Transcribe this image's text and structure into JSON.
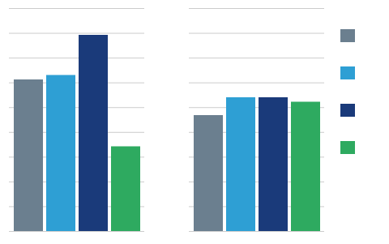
{
  "chart_data": {
    "type": "bar",
    "categories": [
      null,
      null
    ],
    "series": [
      {
        "color": "#6b7f8f",
        "values": [
          68,
          52
        ]
      },
      {
        "color": "#2e9fd4",
        "values": [
          70,
          60
        ]
      },
      {
        "color": "#1a3a7a",
        "values": [
          88,
          60
        ]
      },
      {
        "color": "#2eaa60",
        "values": [
          38,
          58
        ]
      }
    ],
    "ylim": [
      0,
      100
    ],
    "yticks": [
      0,
      11.11111111111111,
      22.22222222222222,
      33.333333333333336,
      44.44444444444444,
      55.55555555555556,
      66.66666666666667,
      77.77777777777777,
      88.88888888888889,
      100
    ],
    "grid": true,
    "tick_labels": false,
    "legend": "right"
  }
}
